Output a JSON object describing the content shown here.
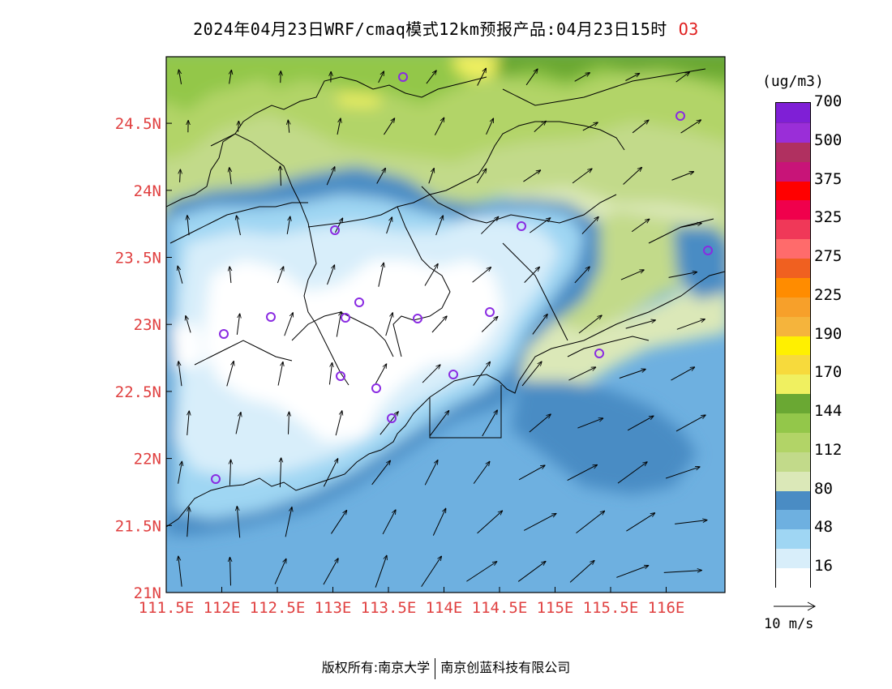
{
  "title": {
    "main": "2024年04月23日WRF/cmaq模式12km预报产品:04月23日15时",
    "species": "O3"
  },
  "map": {
    "lon_ticks": [
      "111.5E",
      "112E",
      "112.5E",
      "113E",
      "113.5E",
      "114E",
      "114.5E",
      "115E",
      "115.5E",
      "116E"
    ],
    "lat_ticks": [
      "21N",
      "21.5N",
      "22N",
      "22.5N",
      "23N",
      "23.5N",
      "24N",
      "24.5N"
    ],
    "tick_color": "#e04040",
    "station_color": "#8a2be2"
  },
  "colorbar": {
    "unit": "(ug/m3)",
    "colors": [
      "#ffffff",
      "#d8eefa",
      "#9fd6f3",
      "#6eb0e0",
      "#4a8cc4",
      "#dbe8b8",
      "#c2da8a",
      "#b2d467",
      "#93c74a",
      "#6aa833",
      "#f0f060",
      "#f7da3c",
      "#fff000",
      "#f5b43c",
      "#f7a02a",
      "#ff8c00",
      "#f06020",
      "#ff6b6b",
      "#f03858",
      "#f0004c",
      "#ff0000",
      "#c81478",
      "#b03060",
      "#9a2ed8",
      "#7f1fd6"
    ],
    "labels": [
      "16",
      "48",
      "80",
      "112",
      "144",
      "170",
      "190",
      "225",
      "275",
      "325",
      "375",
      "500",
      "700"
    ]
  },
  "reference_vector": {
    "label": "10 m/s"
  },
  "footer": {
    "left": "版权所有:南京大学",
    "right": "南京创蓝科技有限公司"
  }
}
